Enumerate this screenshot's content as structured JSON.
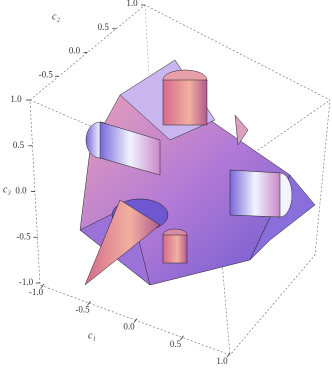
{
  "axes": {
    "c1": {
      "label": "c₁",
      "lim": [
        -1,
        1
      ],
      "ticks": [
        {
          "value": -1,
          "label": "-1.0"
        },
        {
          "value": -0.5,
          "label": "-0.5"
        },
        {
          "value": 0,
          "label": "0.0"
        },
        {
          "value": 0.5,
          "label": "0.5"
        },
        {
          "value": 1,
          "label": "1.0"
        }
      ]
    },
    "c2": {
      "label": "c₂",
      "lim": [
        -1,
        1
      ],
      "ticks": [
        {
          "value": -0.5,
          "label": "-0.5"
        },
        {
          "value": 0,
          "label": "0.0"
        },
        {
          "value": 0.5,
          "label": "0.5"
        },
        {
          "value": 1,
          "label": "1.0"
        }
      ]
    },
    "c3": {
      "label": "c₃",
      "lim": [
        -1,
        1
      ],
      "ticks": [
        {
          "value": -1,
          "label": "-1.0"
        },
        {
          "value": -0.5,
          "label": "-0.5"
        },
        {
          "value": 0,
          "label": "0.0"
        },
        {
          "value": 0.5,
          "label": "0.5"
        },
        {
          "value": 1,
          "label": "1.0"
        }
      ]
    }
  }
}
